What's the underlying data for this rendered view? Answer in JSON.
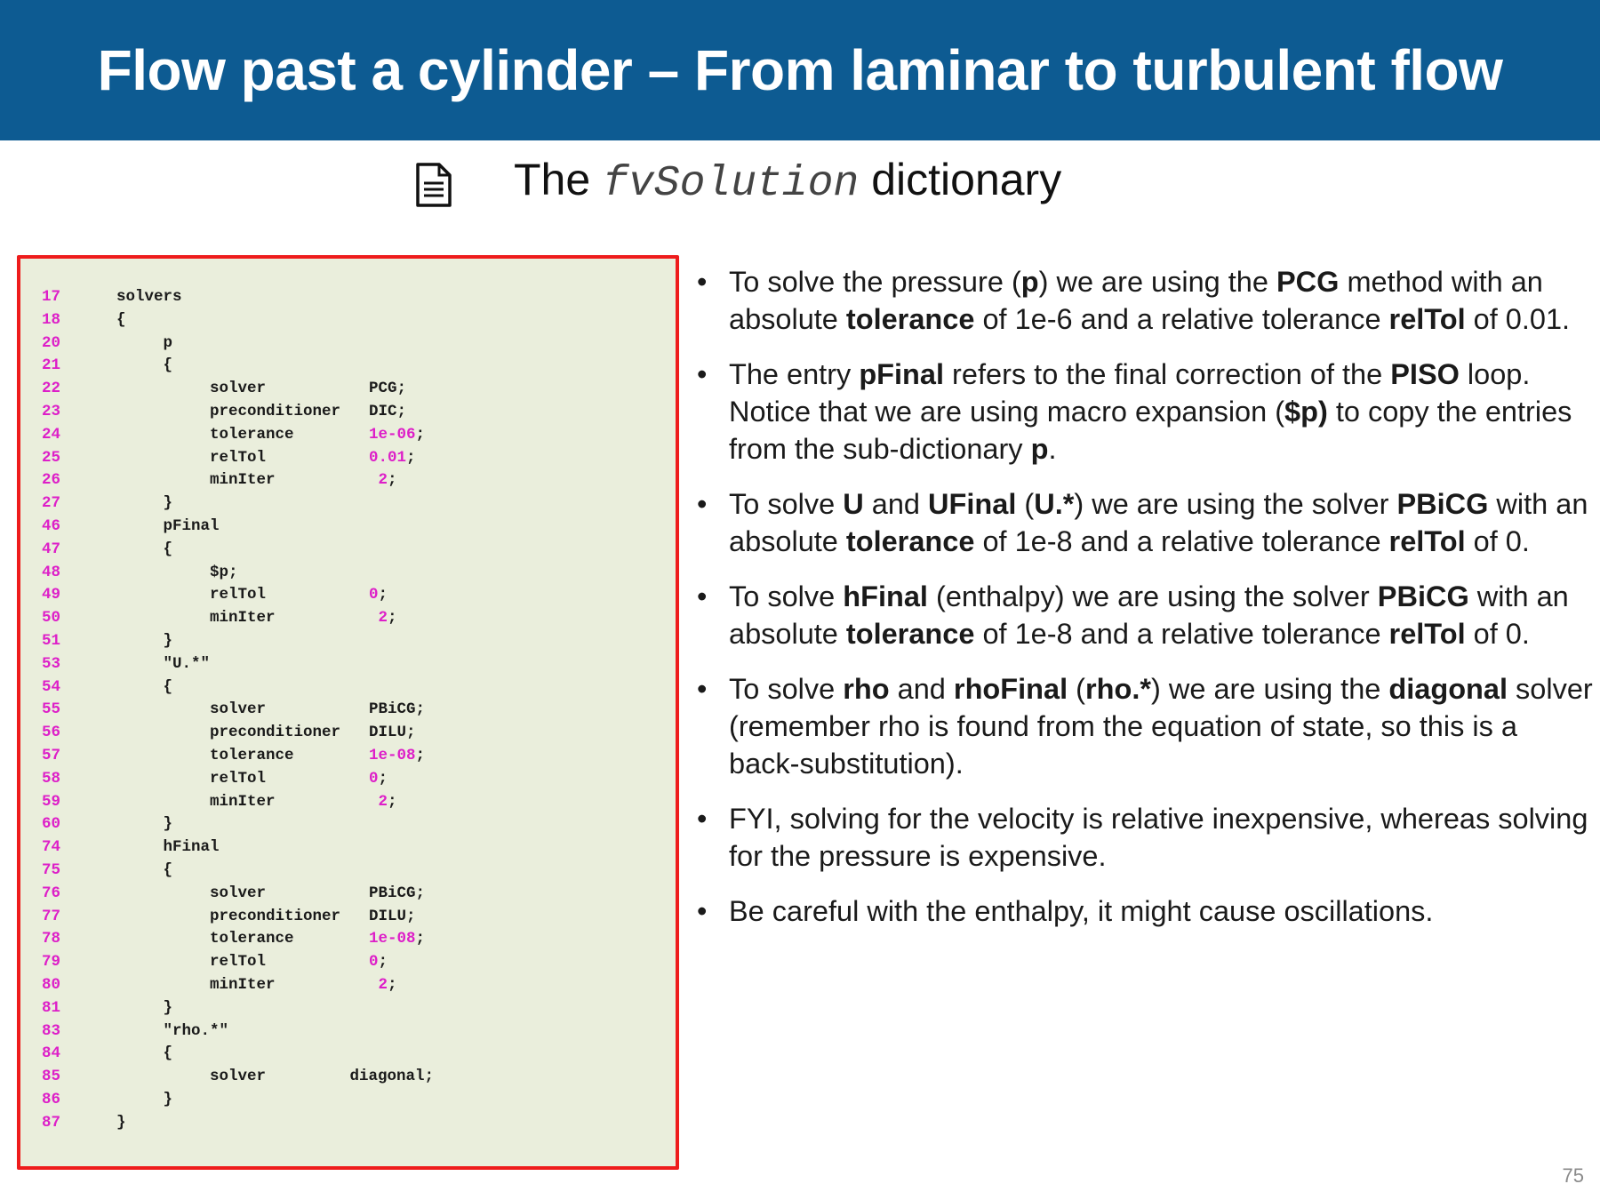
{
  "header": {
    "title": "Flow past a cylinder – From laminar to turbulent flow"
  },
  "subtitle": {
    "prefix": "The",
    "mono": "fvSolution",
    "suffix": "dictionary",
    "icon": "document-icon"
  },
  "code_lines": [
    {
      "ln": "17",
      "code": "solvers"
    },
    {
      "ln": "18",
      "code": "{"
    },
    {
      "ln": "20",
      "code": "     p"
    },
    {
      "ln": "21",
      "code": "     {"
    },
    {
      "ln": "22",
      "code": "          solver",
      "val": "PCG",
      "num": false
    },
    {
      "ln": "23",
      "code": "          preconditioner",
      "val": "DIC",
      "num": false
    },
    {
      "ln": "24",
      "code": "          tolerance",
      "val": "1e-06",
      "num": true
    },
    {
      "ln": "25",
      "code": "          relTol",
      "val": "0.01",
      "num": true
    },
    {
      "ln": "26",
      "code": "          minIter",
      "val": " 2",
      "num": true
    },
    {
      "ln": "27",
      "code": "     }"
    },
    {
      "ln": "46",
      "code": "     pFinal"
    },
    {
      "ln": "47",
      "code": "     {"
    },
    {
      "ln": "48",
      "code": "          $p;"
    },
    {
      "ln": "49",
      "code": "          relTol",
      "val": "0",
      "num": true
    },
    {
      "ln": "50",
      "code": "          minIter",
      "val": " 2",
      "num": true
    },
    {
      "ln": "51",
      "code": "     }"
    },
    {
      "ln": "53",
      "code": "     \"U.*\""
    },
    {
      "ln": "54",
      "code": "     {"
    },
    {
      "ln": "55",
      "code": "          solver",
      "val": "PBiCG",
      "num": false
    },
    {
      "ln": "56",
      "code": "          preconditioner",
      "val": "DILU",
      "num": false
    },
    {
      "ln": "57",
      "code": "          tolerance",
      "val": "1e-08",
      "num": true
    },
    {
      "ln": "58",
      "code": "          relTol",
      "val": "0",
      "num": true
    },
    {
      "ln": "59",
      "code": "          minIter",
      "val": " 2",
      "num": true
    },
    {
      "ln": "60",
      "code": "     }"
    },
    {
      "ln": "74",
      "code": "     hFinal"
    },
    {
      "ln": "75",
      "code": "     {"
    },
    {
      "ln": "76",
      "code": "          solver",
      "val": "PBiCG",
      "num": false
    },
    {
      "ln": "77",
      "code": "          preconditioner",
      "val": "DILU",
      "num": false
    },
    {
      "ln": "78",
      "code": "          tolerance",
      "val": "1e-08",
      "num": true
    },
    {
      "ln": "79",
      "code": "          relTol",
      "val": "0",
      "num": true
    },
    {
      "ln": "80",
      "code": "          minIter",
      "val": " 2",
      "num": true
    },
    {
      "ln": "81",
      "code": "     }"
    },
    {
      "ln": "83",
      "code": "     \"rho.*\""
    },
    {
      "ln": "84",
      "code": "     {"
    },
    {
      "ln": "85",
      "code": "          solver         diagonal;"
    },
    {
      "ln": "86",
      "code": "     }"
    },
    {
      "ln": "87",
      "code": "}"
    }
  ],
  "bullets": [
    [
      {
        "t": "To solve the pressure ("
      },
      {
        "t": "p",
        "b": true
      },
      {
        "t": ") we are using the "
      },
      {
        "t": "PCG",
        "b": true
      },
      {
        "t": " method with an absolute "
      },
      {
        "t": "tolerance",
        "b": true
      },
      {
        "t": " of 1e-6 and a relative tolerance "
      },
      {
        "t": "relTol",
        "b": true
      },
      {
        "t": " of 0.01."
      }
    ],
    [
      {
        "t": "The entry "
      },
      {
        "t": "pFinal",
        "b": true
      },
      {
        "t": " refers to the final correction of the "
      },
      {
        "t": "PISO",
        "b": true
      },
      {
        "t": " loop. Notice that we are using macro expansion ("
      },
      {
        "t": "$p)",
        "b": true
      },
      {
        "t": " to copy the entries from the sub-dictionary "
      },
      {
        "t": "p",
        "b": true
      },
      {
        "t": "."
      }
    ],
    [
      {
        "t": "To solve "
      },
      {
        "t": "U",
        "b": true
      },
      {
        "t": " and "
      },
      {
        "t": "UFinal",
        "b": true
      },
      {
        "t": " ("
      },
      {
        "t": "U.*",
        "b": true
      },
      {
        "t": ") we are using the solver "
      },
      {
        "t": "PBiCG",
        "b": true
      },
      {
        "t": " with an absolute "
      },
      {
        "t": "tolerance",
        "b": true
      },
      {
        "t": " of 1e-8 and a relative tolerance "
      },
      {
        "t": "relTol",
        "b": true
      },
      {
        "t": " of 0."
      }
    ],
    [
      {
        "t": "To solve "
      },
      {
        "t": "hFinal",
        "b": true
      },
      {
        "t": " (enthalpy) we are using the solver "
      },
      {
        "t": "PBiCG",
        "b": true
      },
      {
        "t": " with an absolute "
      },
      {
        "t": "tolerance",
        "b": true
      },
      {
        "t": " of 1e-8 and a relative tolerance "
      },
      {
        "t": "relTol",
        "b": true
      },
      {
        "t": " of 0."
      }
    ],
    [
      {
        "t": "To solve "
      },
      {
        "t": "rho",
        "b": true
      },
      {
        "t": " and "
      },
      {
        "t": "rhoFinal",
        "b": true
      },
      {
        "t": " ("
      },
      {
        "t": "rho.*",
        "b": true
      },
      {
        "t": ") we are using the "
      },
      {
        "t": "diagonal",
        "b": true
      },
      {
        "t": " solver (remember rho is found from the equation of state, so this is a back-substitution)."
      }
    ],
    [
      {
        "t": "FYI, solving for the velocity is relative inexpensive, whereas solving for the pressure is expensive."
      }
    ],
    [
      {
        "t": "Be careful with the enthalpy, it might cause oscillations."
      }
    ]
  ],
  "page_number": "75"
}
